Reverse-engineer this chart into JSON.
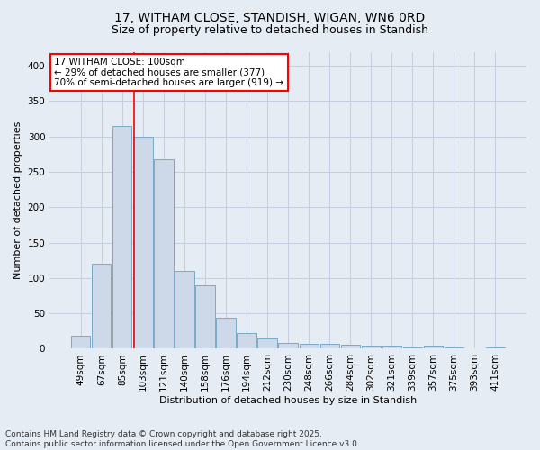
{
  "title1": "17, WITHAM CLOSE, STANDISH, WIGAN, WN6 0RD",
  "title2": "Size of property relative to detached houses in Standish",
  "xlabel": "Distribution of detached houses by size in Standish",
  "ylabel": "Number of detached properties",
  "footer1": "Contains HM Land Registry data © Crown copyright and database right 2025.",
  "footer2": "Contains public sector information licensed under the Open Government Licence v3.0.",
  "bar_labels": [
    "49sqm",
    "67sqm",
    "85sqm",
    "103sqm",
    "121sqm",
    "140sqm",
    "158sqm",
    "176sqm",
    "194sqm",
    "212sqm",
    "230sqm",
    "248sqm",
    "266sqm",
    "284sqm",
    "302sqm",
    "321sqm",
    "339sqm",
    "357sqm",
    "375sqm",
    "393sqm",
    "411sqm"
  ],
  "bar_values": [
    18,
    120,
    315,
    300,
    268,
    110,
    90,
    44,
    22,
    15,
    8,
    7,
    7,
    6,
    5,
    4,
    2,
    5,
    2,
    1,
    2
  ],
  "bar_color": "#cdd8e8",
  "bar_edge_color": "#7aaac8",
  "grid_color": "#c4cfe0",
  "background_color": "#e6ecf4",
  "red_line_x": 2.575,
  "annotation_text": "17 WITHAM CLOSE: 100sqm\n← 29% of detached houses are smaller (377)\n70% of semi-detached houses are larger (919) →",
  "annotation_box_color": "white",
  "annotation_border_color": "red",
  "ylim": [
    0,
    420
  ],
  "yticks": [
    0,
    50,
    100,
    150,
    200,
    250,
    300,
    350,
    400
  ],
  "title1_fontsize": 10,
  "title2_fontsize": 9,
  "axis_label_fontsize": 8,
  "tick_fontsize": 7.5,
  "annotation_fontsize": 7.5,
  "footer_fontsize": 6.5
}
